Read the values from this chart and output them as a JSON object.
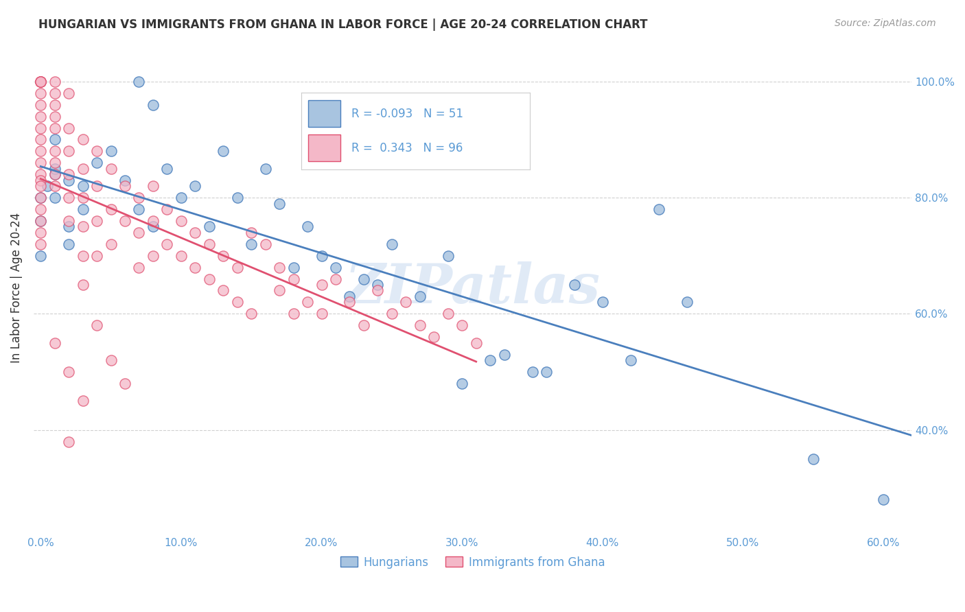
{
  "title": "HUNGARIAN VS IMMIGRANTS FROM GHANA IN LABOR FORCE | AGE 20-24 CORRELATION CHART",
  "source": "Source: ZipAtlas.com",
  "ylabel": "In Labor Force | Age 20-24",
  "xlim": [
    -0.005,
    0.62
  ],
  "ylim": [
    0.22,
    1.07
  ],
  "blue_R": -0.093,
  "blue_N": 51,
  "pink_R": 0.343,
  "pink_N": 96,
  "blue_color": "#a8c4e0",
  "pink_color": "#f4b8c8",
  "blue_line_color": "#4a7fbd",
  "pink_line_color": "#e05070",
  "legend_label_blue": "Hungarians",
  "legend_label_pink": "Immigrants from Ghana",
  "watermark": "ZIPatlas",
  "blue_x": [
    0.005,
    0.01,
    0.0,
    0.02,
    0.03,
    0.0,
    0.01,
    0.02,
    0.01,
    0.0,
    0.01,
    0.02,
    0.03,
    0.05,
    0.04,
    0.06,
    0.07,
    0.07,
    0.08,
    0.08,
    0.09,
    0.1,
    0.11,
    0.12,
    0.13,
    0.14,
    0.15,
    0.16,
    0.17,
    0.18,
    0.19,
    0.2,
    0.21,
    0.22,
    0.23,
    0.24,
    0.25,
    0.27,
    0.29,
    0.3,
    0.32,
    0.33,
    0.35,
    0.36,
    0.38,
    0.4,
    0.42,
    0.44,
    0.46,
    0.55,
    0.6
  ],
  "blue_y": [
    0.82,
    0.84,
    0.8,
    0.83,
    0.78,
    0.76,
    0.85,
    0.75,
    0.9,
    0.7,
    0.8,
    0.72,
    0.82,
    0.88,
    0.86,
    0.83,
    0.78,
    1.0,
    0.96,
    0.75,
    0.85,
    0.8,
    0.82,
    0.75,
    0.88,
    0.8,
    0.72,
    0.85,
    0.79,
    0.68,
    0.75,
    0.7,
    0.68,
    0.63,
    0.66,
    0.65,
    0.72,
    0.63,
    0.7,
    0.48,
    0.52,
    0.53,
    0.5,
    0.5,
    0.65,
    0.62,
    0.52,
    0.78,
    0.62,
    0.35,
    0.28
  ],
  "pink_x": [
    0.0,
    0.0,
    0.0,
    0.0,
    0.0,
    0.0,
    0.0,
    0.0,
    0.0,
    0.0,
    0.0,
    0.0,
    0.0,
    0.0,
    0.0,
    0.0,
    0.0,
    0.0,
    0.0,
    0.0,
    0.01,
    0.01,
    0.01,
    0.01,
    0.01,
    0.01,
    0.01,
    0.01,
    0.01,
    0.02,
    0.02,
    0.02,
    0.02,
    0.02,
    0.02,
    0.03,
    0.03,
    0.03,
    0.03,
    0.03,
    0.04,
    0.04,
    0.04,
    0.04,
    0.05,
    0.05,
    0.05,
    0.06,
    0.06,
    0.07,
    0.07,
    0.07,
    0.08,
    0.08,
    0.08,
    0.09,
    0.09,
    0.1,
    0.1,
    0.11,
    0.11,
    0.12,
    0.12,
    0.13,
    0.13,
    0.14,
    0.14,
    0.15,
    0.15,
    0.16,
    0.17,
    0.17,
    0.18,
    0.18,
    0.19,
    0.2,
    0.2,
    0.21,
    0.22,
    0.23,
    0.24,
    0.25,
    0.26,
    0.27,
    0.28,
    0.29,
    0.3,
    0.31,
    0.02,
    0.03,
    0.04,
    0.05,
    0.06,
    0.01,
    0.02,
    0.03
  ],
  "pink_y": [
    1.0,
    1.0,
    1.0,
    1.0,
    1.0,
    0.98,
    0.96,
    0.94,
    0.92,
    0.9,
    0.88,
    0.86,
    0.84,
    0.83,
    0.82,
    0.8,
    0.78,
    0.76,
    0.74,
    0.72,
    1.0,
    0.98,
    0.96,
    0.94,
    0.92,
    0.88,
    0.86,
    0.84,
    0.82,
    0.98,
    0.92,
    0.88,
    0.84,
    0.8,
    0.76,
    0.9,
    0.85,
    0.8,
    0.75,
    0.7,
    0.88,
    0.82,
    0.76,
    0.7,
    0.85,
    0.78,
    0.72,
    0.82,
    0.76,
    0.8,
    0.74,
    0.68,
    0.82,
    0.76,
    0.7,
    0.78,
    0.72,
    0.76,
    0.7,
    0.74,
    0.68,
    0.72,
    0.66,
    0.7,
    0.64,
    0.68,
    0.62,
    0.74,
    0.6,
    0.72,
    0.68,
    0.64,
    0.66,
    0.6,
    0.62,
    0.65,
    0.6,
    0.66,
    0.62,
    0.58,
    0.64,
    0.6,
    0.62,
    0.58,
    0.56,
    0.6,
    0.58,
    0.55,
    0.38,
    0.65,
    0.58,
    0.52,
    0.48,
    0.55,
    0.5,
    0.45
  ]
}
